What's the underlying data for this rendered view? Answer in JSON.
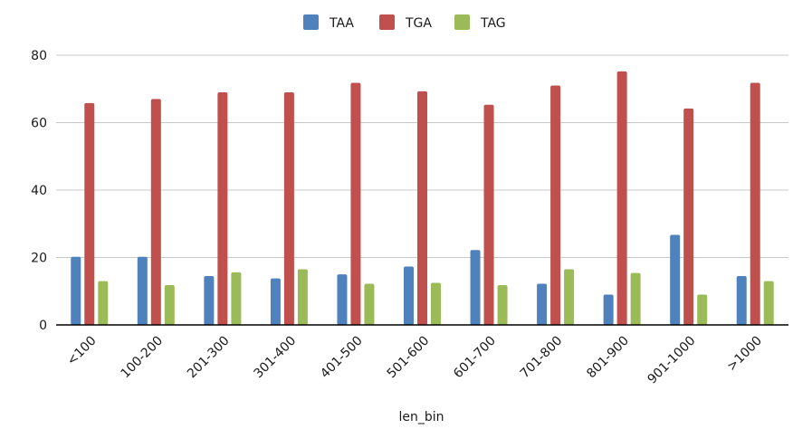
{
  "chart_data": {
    "type": "bar",
    "title": "",
    "xlabel": "len_bin",
    "ylabel": "",
    "ylim": [
      0,
      80
    ],
    "yticks": [
      0,
      20,
      40,
      60,
      80
    ],
    "grid": true,
    "legend_position": "top-center",
    "categories": [
      "<100",
      "100-200",
      "201-300",
      "301-400",
      "401-500",
      "501-600",
      "601-700",
      "701-800",
      "801-900",
      "901-1000",
      ">1000"
    ],
    "series": [
      {
        "name": "TAA",
        "color": "#4f81bd",
        "values": [
          20.2,
          20.2,
          14.5,
          13.8,
          15.0,
          17.3,
          22.2,
          12.2,
          9.0,
          26.7,
          14.5
        ]
      },
      {
        "name": "TGA",
        "color": "#c0504d",
        "values": [
          65.8,
          67.0,
          69.0,
          69.0,
          71.8,
          69.3,
          65.3,
          71.0,
          75.2,
          64.2,
          71.8
        ]
      },
      {
        "name": "TAG",
        "color": "#9bbb59",
        "values": [
          13.0,
          11.8,
          15.6,
          16.5,
          12.2,
          12.5,
          11.8,
          16.5,
          15.4,
          9.0,
          13.0
        ]
      }
    ]
  }
}
